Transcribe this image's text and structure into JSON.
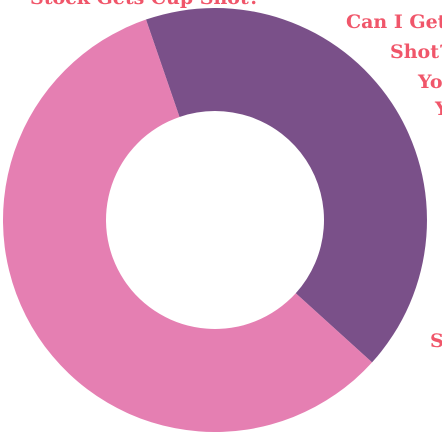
{
  "colors": {
    "text_accent": "#f0566a",
    "slice_pink": "#e57fb2",
    "slice_purple": "#7a5089",
    "background": "#ffffff"
  },
  "side_text": {
    "top_line": "Stock Gets Cup Shot?",
    "line1": "Can I Get",
    "line2": "Shot?",
    "line3": "Yo",
    "line4": "Y",
    "line5": "S"
  },
  "chart_data": {
    "type": "pie",
    "subtype": "donut",
    "slices": [
      {
        "value": 42,
        "color": "#7a5089"
      },
      {
        "value": 58,
        "color": "#e57fb2"
      }
    ],
    "legend": "none",
    "grid": false
  }
}
